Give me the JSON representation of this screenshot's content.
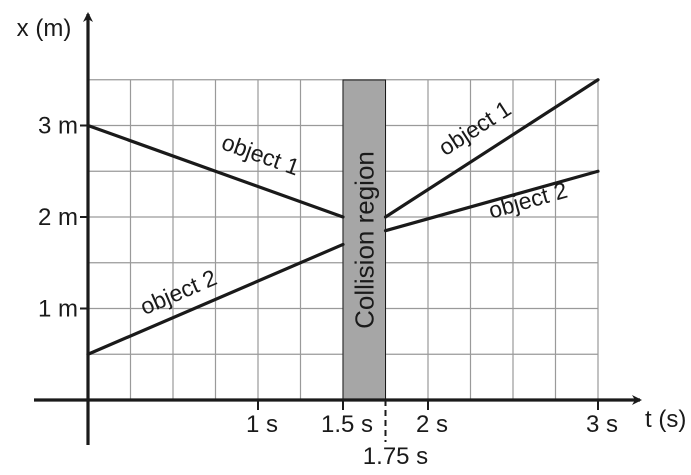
{
  "chart_data": {
    "type": "line",
    "title": "",
    "xlabel": "t (s)",
    "ylabel": "x (m)",
    "xlim": [
      0,
      3
    ],
    "ylim": [
      0,
      3.5
    ],
    "grid": true,
    "x_ticks": [
      {
        "value": 1,
        "label": "1 s"
      },
      {
        "value": 1.5,
        "label": "1.5 s"
      },
      {
        "value": 2,
        "label": "2 s"
      },
      {
        "value": 3,
        "label": "3 s"
      }
    ],
    "extra_x_tick": {
      "value": 1.75,
      "label": "1.75 s"
    },
    "y_ticks": [
      {
        "value": 1,
        "label": "1 m"
      },
      {
        "value": 2,
        "label": "2 m"
      },
      {
        "value": 3,
        "label": "3 m"
      }
    ],
    "series": [
      {
        "name": "object 1",
        "segments": [
          [
            [
              0,
              3
            ],
            [
              1.5,
              2
            ]
          ],
          [
            [
              1.75,
              2
            ],
            [
              3,
              3.5
            ]
          ]
        ]
      },
      {
        "name": "object 2",
        "segments": [
          [
            [
              0,
              0.5
            ],
            [
              1.5,
              1.7
            ]
          ],
          [
            [
              1.75,
              1.85
            ],
            [
              3,
              2.5
            ]
          ]
        ]
      }
    ],
    "region": {
      "label": "Collision region",
      "x_start": 1.5,
      "x_end": 1.75,
      "color": "#a6a6a6"
    },
    "series_labels": [
      {
        "text": "object 1",
        "x": 1.0,
        "y": 2.6
      },
      {
        "text": "object 2",
        "x": 0.55,
        "y": 1.1
      },
      {
        "text": "object 1",
        "x": 2.3,
        "y": 2.9
      },
      {
        "text": "object 2",
        "x": 2.6,
        "y": 2.1
      }
    ],
    "colors": {
      "line": "#1a1a1a",
      "grid": "#9a9a9a",
      "axis": "#1a1a1a"
    }
  }
}
